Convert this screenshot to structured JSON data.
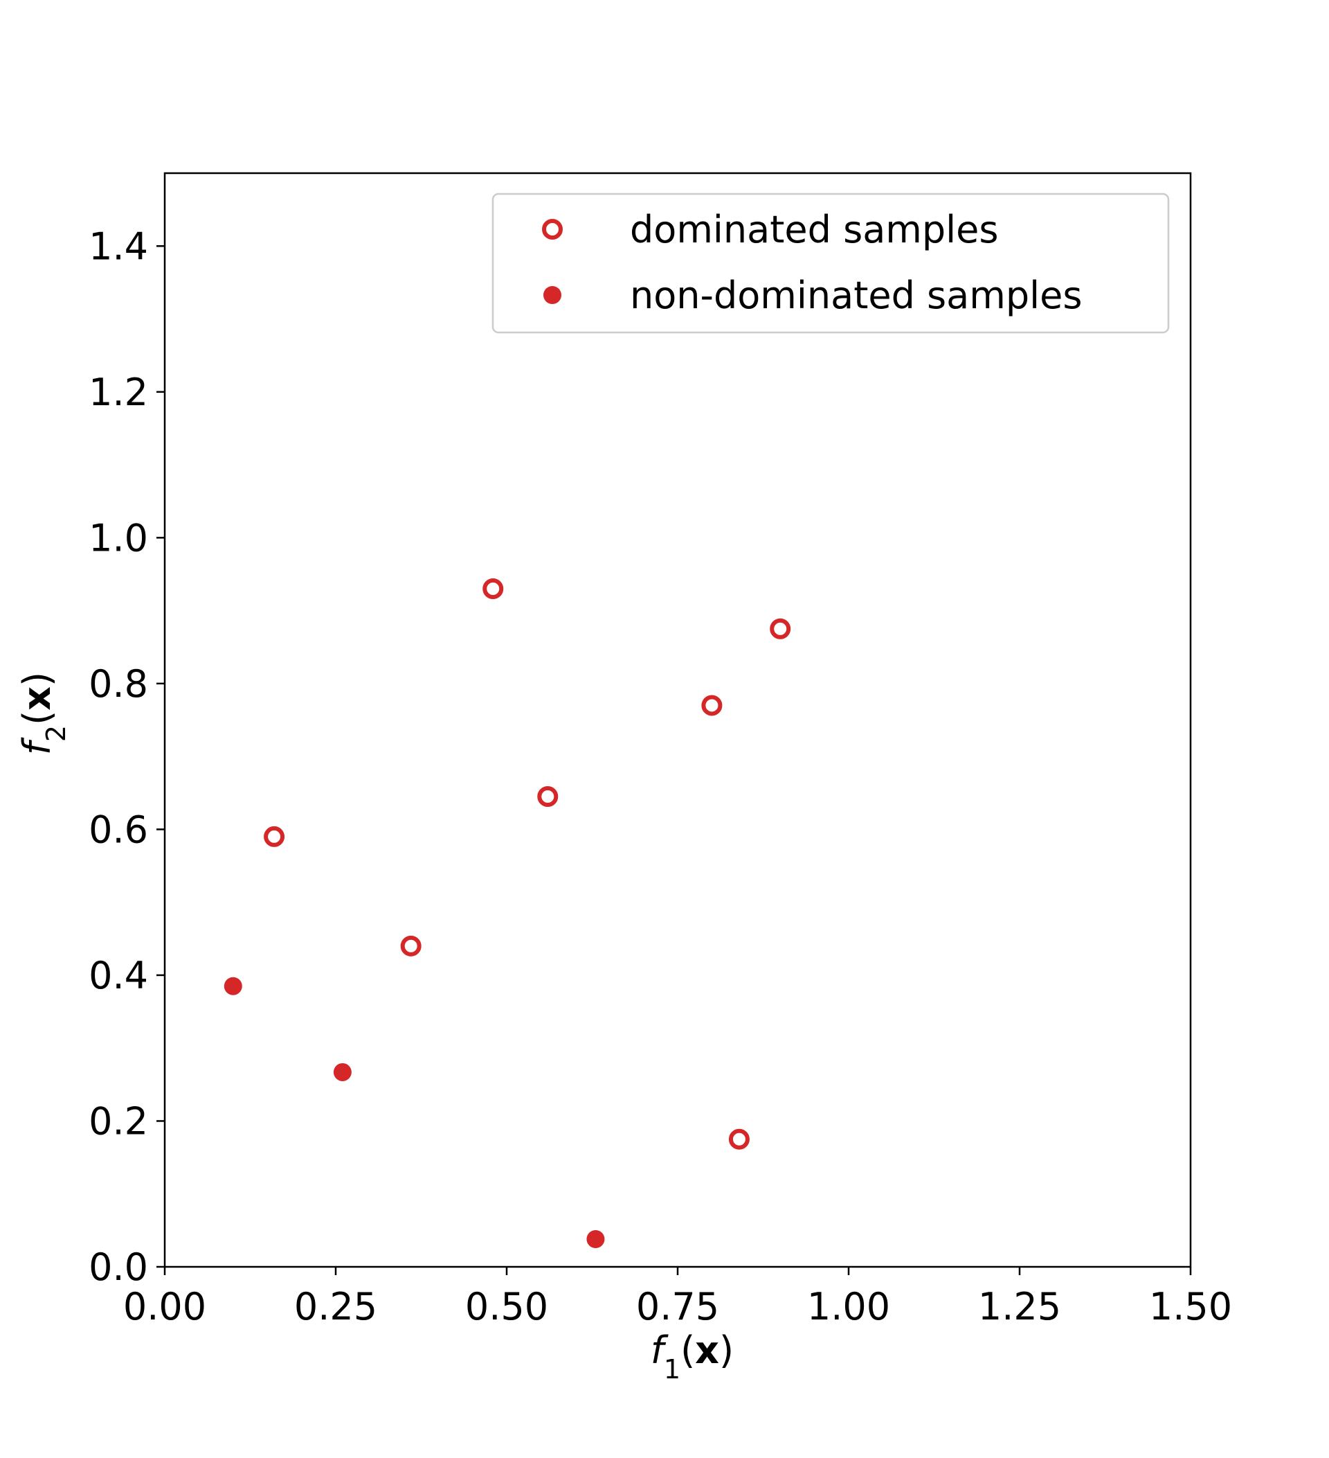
{
  "chart_data": {
    "type": "scatter",
    "title": "",
    "xlabel": {
      "base": "f",
      "sub": "1",
      "arg_open": "(",
      "arg": "x",
      "arg_close": ")"
    },
    "ylabel": {
      "base": "f",
      "sub": "2",
      "arg_open": "(",
      "arg": "x",
      "arg_close": ")"
    },
    "xlim": [
      0.0,
      1.5
    ],
    "ylim": [
      0.0,
      1.5
    ],
    "xticks": [
      0.0,
      0.25,
      0.5,
      0.75,
      1.0,
      1.25,
      1.5
    ],
    "xtick_labels": [
      "0.00",
      "0.25",
      "0.50",
      "0.75",
      "1.00",
      "1.25",
      "1.50"
    ],
    "yticks": [
      0.0,
      0.2,
      0.4,
      0.6,
      0.8,
      1.0,
      1.2,
      1.4
    ],
    "ytick_labels": [
      "0.0",
      "0.2",
      "0.4",
      "0.6",
      "0.8",
      "1.0",
      "1.2",
      "1.4"
    ],
    "grid": false,
    "legend_position": "top-right",
    "color": "#d62728",
    "series": [
      {
        "name": "dominated samples",
        "marker": "hollow-circle",
        "points": [
          {
            "x": 0.16,
            "y": 0.59
          },
          {
            "x": 0.36,
            "y": 0.44
          },
          {
            "x": 0.48,
            "y": 0.93
          },
          {
            "x": 0.56,
            "y": 0.645
          },
          {
            "x": 0.8,
            "y": 0.77
          },
          {
            "x": 0.9,
            "y": 0.875
          },
          {
            "x": 0.84,
            "y": 0.175
          }
        ]
      },
      {
        "name": "non-dominated samples",
        "marker": "filled-circle",
        "points": [
          {
            "x": 0.1,
            "y": 0.385
          },
          {
            "x": 0.26,
            "y": 0.267
          },
          {
            "x": 0.63,
            "y": 0.038
          }
        ]
      }
    ]
  }
}
